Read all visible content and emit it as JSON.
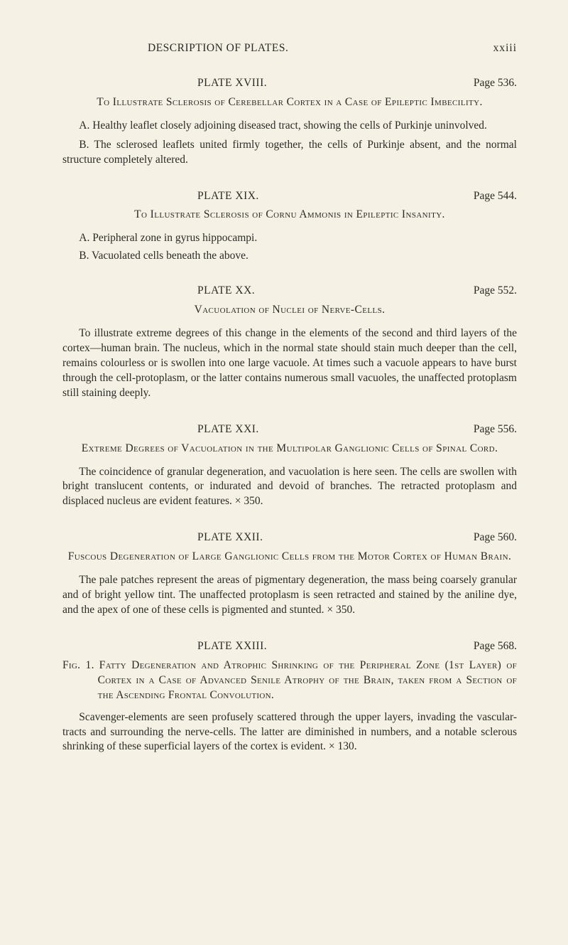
{
  "colors": {
    "background": "#f5f1e4",
    "text": "#2a2a26"
  },
  "typography": {
    "body_fontsize_pt": 11.5,
    "line_height": 1.35,
    "font_family": "Times New Roman / old-style serif"
  },
  "header": {
    "left": "DESCRIPTION OF PLATES.",
    "right": "xxiii"
  },
  "plates": [
    {
      "plate_label": "PLATE XVIII.",
      "page_label": "Page 536.",
      "subject": "To Illustrate Sclerosis of Cerebellar Cortex in a Case of Epileptic Imbecility.",
      "paragraphs": [
        "A. Healthy leaflet closely adjoining diseased tract, showing the cells of Purkinje uninvolved.",
        "B. The sclerosed leaflets united firmly together, the cells of Purkinje absent, and the normal structure completely altered."
      ]
    },
    {
      "plate_label": "PLATE XIX.",
      "page_label": "Page 544.",
      "subject": "To Illustrate Sclerosis of Cornu Ammonis in Epileptic Insanity.",
      "paragraphs": [
        "A. Peripheral zone in gyrus hippocampi.",
        "B. Vacuolated cells beneath the above."
      ]
    },
    {
      "plate_label": "PLATE XX.",
      "page_label": "Page 552.",
      "subject": "Vacuolation of Nuclei of Nerve-Cells.",
      "paragraphs": [
        "To illustrate extreme degrees of this change in the elements of the second and third layers of the cortex—human brain. The nucleus, which in the normal state should stain much deeper than the cell, remains colourless or is swollen into one large vacuole. At times such a vacuole appears to have burst through the cell-protoplasm, or the latter contains numerous small vacuoles, the unaffected protoplasm still staining deeply."
      ]
    },
    {
      "plate_label": "PLATE XXI.",
      "page_label": "Page 556.",
      "subject": "Extreme Degrees of Vacuolation in the Multipolar Ganglionic Cells of Spinal Cord.",
      "paragraphs": [
        "The coincidence of granular degeneration, and vacuolation is here seen. The cells are swollen with bright translucent contents, or indurated and devoid of branches. The retracted protoplasm and displaced nucleus are evident features. × 350."
      ]
    },
    {
      "plate_label": "PLATE XXII.",
      "page_label": "Page 560.",
      "subject": "Fuscous Degeneration of Large Ganglionic Cells from the Motor Cortex of Human Brain.",
      "paragraphs": [
        "The pale patches represent the areas of pigmentary degeneration, the mass being coarsely granular and of bright yellow tint. The unaffected protoplasm is seen retracted and stained by the aniline dye, and the apex of one of these cells is pigmented and stunted.    × 350."
      ]
    },
    {
      "plate_label": "PLATE XXIII.",
      "page_label": "Page 568.",
      "fig": {
        "label": "Fig. 1.",
        "title": "Fatty Degeneration and Atrophic Shrinking of the Peripheral Zone (1st Layer) of Cortex in a Case of Advanced Senile Atrophy of the Brain, taken from a Section of the Ascending Frontal Convolution."
      },
      "paragraphs": [
        "Scavenger-elements are seen profusely scattered through the upper layers, invading the vascular-tracts and surrounding the nerve-cells. The latter are diminished in numbers, and a notable sclerous shrinking of these superficial layers of the cortex is evident.    × 130."
      ]
    }
  ]
}
